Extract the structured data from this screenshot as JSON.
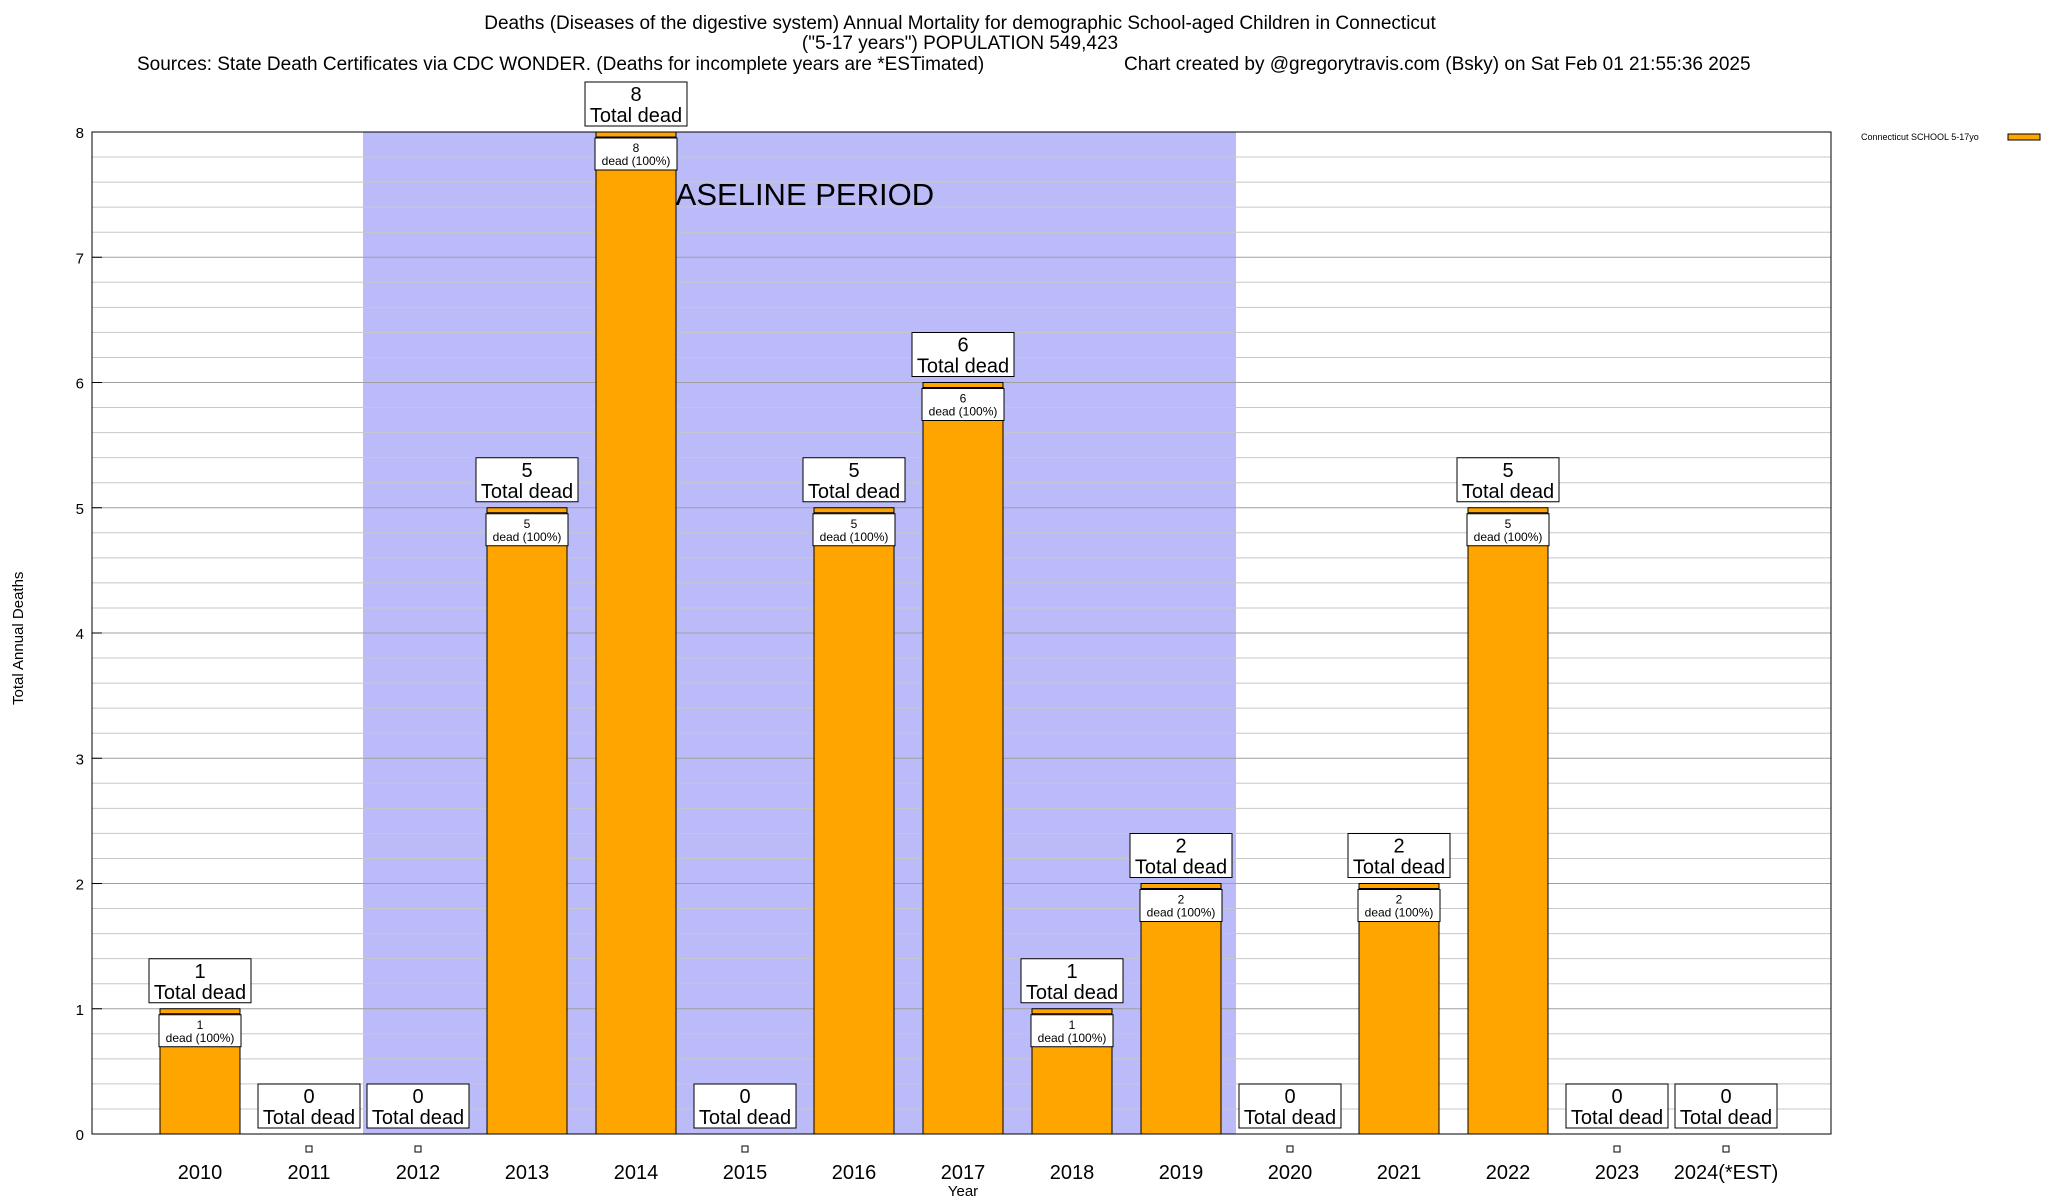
{
  "header": {
    "title_line1": "Deaths (Diseases of the digestive system) Annual Mortality for demographic School-aged Children in Connecticut",
    "title_line2": "(\"5-17 years\") POPULATION 549,423",
    "sources": "Sources: State Death Certificates via CDC WONDER. (Deaths for incomplete years are *ESTimated)",
    "credit": "Chart created by @gregorytravis.com (Bsky) on Sat Feb 01 21:55:36 2025"
  },
  "chart_data": {
    "type": "bar",
    "xlabel": "Year",
    "ylabel": "Total Annual Deaths",
    "ylim": [
      0,
      8
    ],
    "yticks": [
      0,
      1,
      2,
      3,
      4,
      5,
      6,
      7,
      8
    ],
    "minor_grid_per_unit": 5,
    "grid": true,
    "legend_position": "top-right",
    "categories": [
      "2010",
      "2011",
      "2012",
      "2013",
      "2014",
      "2015",
      "2016",
      "2017",
      "2018",
      "2019",
      "2020",
      "2021",
      "2022",
      "2023",
      "2024(*EST)"
    ],
    "series": [
      {
        "name": "Connecticut SCHOOL 5-17yo",
        "color": "#ffa500",
        "values": [
          1,
          0,
          0,
          5,
          8,
          0,
          5,
          6,
          1,
          2,
          0,
          2,
          5,
          0,
          0
        ]
      }
    ],
    "total_labels": [
      "1\nTotal dead",
      "0\nTotal dead",
      "0\nTotal dead",
      "5\nTotal dead",
      "8\nTotal dead",
      "0\nTotal dead",
      "5\nTotal dead",
      "6\nTotal dead",
      "1\nTotal dead",
      "2\nTotal dead",
      "0\nTotal dead",
      "2\nTotal dead",
      "5\nTotal dead",
      "0\nTotal dead",
      "0\nTotal dead"
    ],
    "segment_labels": [
      "1\ndead (100%)",
      "",
      "",
      "5\ndead (100%)",
      "8\ndead (100%)",
      "",
      "5\ndead (100%)",
      "6\ndead (100%)",
      "1\ndead (100%)",
      "2\ndead (100%)",
      "",
      "2\ndead (100%)",
      "5\ndead (100%)",
      "",
      ""
    ],
    "baseline": {
      "label": "BASELINE PERIOD",
      "from": "2012",
      "to": "2019",
      "color": "#bbbbfa"
    }
  }
}
